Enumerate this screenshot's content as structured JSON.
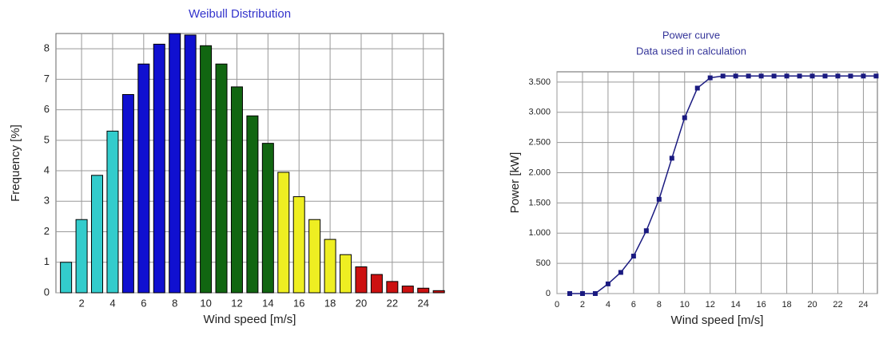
{
  "chart_data": [
    {
      "type": "bar",
      "title": "Weibull Distribution",
      "xlabel": "Wind speed [m/s]",
      "ylabel": "Frequency [%]",
      "x": [
        1,
        2,
        3,
        4,
        5,
        6,
        7,
        8,
        9,
        10,
        11,
        12,
        13,
        14,
        15,
        16,
        17,
        18,
        19,
        20,
        21,
        22,
        23,
        24,
        25
      ],
      "values": [
        1.0,
        2.4,
        3.85,
        5.3,
        6.5,
        7.5,
        8.15,
        8.5,
        8.45,
        8.1,
        7.5,
        6.75,
        5.8,
        4.9,
        3.95,
        3.15,
        2.4,
        1.75,
        1.25,
        0.85,
        0.6,
        0.37,
        0.22,
        0.15,
        0.07
      ],
      "colors": [
        "#33cccc",
        "#33cccc",
        "#33cccc",
        "#33cccc",
        "#1010d0",
        "#1010d0",
        "#1010d0",
        "#1010d0",
        "#1010d0",
        "#116611",
        "#116611",
        "#116611",
        "#116611",
        "#116611",
        "#eeee22",
        "#eeee22",
        "#eeee22",
        "#eeee22",
        "#eeee22",
        "#cc1111",
        "#cc1111",
        "#cc1111",
        "#cc1111",
        "#cc1111",
        "#cc1111"
      ],
      "xlim": [
        0.35,
        25.3
      ],
      "xticks": [
        2,
        4,
        6,
        8,
        10,
        12,
        14,
        16,
        18,
        20,
        22,
        24
      ],
      "ylim": [
        0,
        8.5
      ],
      "yticks": [
        0,
        1,
        2,
        3,
        4,
        5,
        6,
        7,
        8
      ],
      "grid": true
    },
    {
      "type": "line",
      "title": [
        "Power curve",
        "Data used in calculation"
      ],
      "xlabel": "Wind speed [m/s]",
      "ylabel": "Power [kW]",
      "x": [
        1,
        2,
        3,
        4,
        5,
        6,
        7,
        8,
        9,
        10,
        11,
        12,
        13,
        14,
        15,
        16,
        17,
        18,
        19,
        20,
        21,
        22,
        23,
        24,
        25
      ],
      "values": [
        0,
        0,
        0,
        160,
        350,
        620,
        1040,
        1560,
        2240,
        2910,
        3400,
        3570,
        3600,
        3600,
        3600,
        3600,
        3600,
        3600,
        3600,
        3600,
        3600,
        3600,
        3600,
        3600,
        3600
      ],
      "color": "#1a1a80",
      "xlim": [
        0,
        25.1
      ],
      "xticks": [
        0,
        2,
        4,
        6,
        8,
        10,
        12,
        14,
        16,
        18,
        20,
        22,
        24
      ],
      "ylim": [
        0,
        3670
      ],
      "yticks": [
        0,
        {
          "value": 500,
          "label": "500"
        },
        {
          "value": 1000,
          "label": "1.000"
        },
        {
          "value": 1500,
          "label": "1.500"
        },
        {
          "value": 2000,
          "label": "2.000"
        },
        {
          "value": 2500,
          "label": "2.500"
        },
        {
          "value": 3000,
          "label": "3.000"
        },
        {
          "value": 3500,
          "label": "3.500"
        }
      ],
      "grid": true
    }
  ]
}
